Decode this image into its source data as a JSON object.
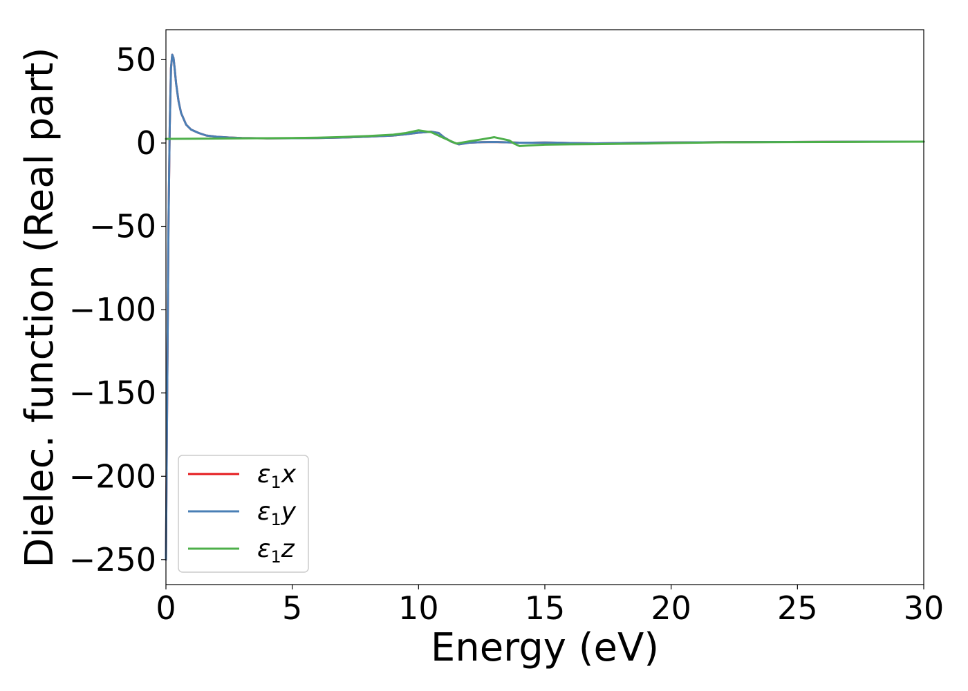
{
  "chart_data": {
    "type": "line",
    "xlabel": "Energy (eV)",
    "ylabel": "Dielec. function (Real part)",
    "xlim": [
      0,
      30
    ],
    "ylim": [
      -265,
      68
    ],
    "xticks": [
      0,
      5,
      10,
      15,
      20,
      25,
      30
    ],
    "yticks": [
      50,
      0,
      -50,
      -100,
      -150,
      -200,
      -250
    ],
    "xtick_labels": [
      "0",
      "5",
      "10",
      "15",
      "20",
      "25",
      "30"
    ],
    "ytick_labels": [
      "50",
      "0",
      "−50",
      "−100",
      "−150",
      "−200",
      "−250"
    ],
    "grid": false,
    "legend_position": "lower-left",
    "series": [
      {
        "name": "ε₁x",
        "legend_main": "ε",
        "legend_sub": "1",
        "legend_var": "x",
        "color": "#e41a1c",
        "x": [
          0.0,
          0.05,
          0.1,
          0.15,
          0.2,
          0.25,
          0.3,
          0.35,
          0.4,
          0.5,
          0.6,
          0.8,
          1.0,
          1.3,
          1.6,
          2.0,
          2.5,
          3.0,
          4.0,
          5.0,
          6.0,
          7.0,
          8.0,
          9.0,
          9.5,
          10.0,
          10.5,
          10.8,
          11.0,
          11.3,
          11.6,
          12.0,
          12.5,
          13.0,
          13.5,
          14.0,
          14.5,
          15.0,
          15.5,
          16.0,
          17.0,
          18.0,
          19.0,
          20.0,
          21.0,
          22.0,
          24.0,
          26.0,
          28.0,
          30.0
        ],
        "y": [
          -250,
          -150,
          -50,
          10,
          45,
          53,
          51,
          44,
          36,
          25,
          18,
          11,
          8,
          6,
          4.5,
          3.8,
          3.3,
          3.0,
          2.8,
          2.9,
          3.0,
          3.3,
          3.8,
          4.5,
          5.3,
          6.2,
          6.8,
          6.0,
          3.5,
          0.8,
          -0.8,
          0.2,
          0.5,
          0.6,
          0.4,
          0.2,
          0.2,
          0.3,
          0.2,
          0.0,
          -0.2,
          0.0,
          0.2,
          0.3,
          0.4,
          0.5,
          0.6,
          0.7,
          0.8,
          0.8
        ]
      },
      {
        "name": "ε₁y",
        "legend_main": "ε",
        "legend_sub": "1",
        "legend_var": "y",
        "color": "#4a7fb5",
        "x": [
          0.0,
          0.05,
          0.1,
          0.15,
          0.2,
          0.25,
          0.3,
          0.35,
          0.4,
          0.5,
          0.6,
          0.8,
          1.0,
          1.3,
          1.6,
          2.0,
          2.5,
          3.0,
          4.0,
          5.0,
          6.0,
          7.0,
          8.0,
          9.0,
          9.5,
          10.0,
          10.5,
          10.8,
          11.0,
          11.3,
          11.6,
          12.0,
          12.5,
          13.0,
          13.5,
          14.0,
          14.5,
          15.0,
          15.5,
          16.0,
          17.0,
          18.0,
          19.0,
          20.0,
          21.0,
          22.0,
          24.0,
          26.0,
          28.0,
          30.0
        ],
        "y": [
          -250,
          -150,
          -50,
          10,
          45,
          53,
          51,
          44,
          36,
          25,
          18,
          11,
          8,
          6,
          4.5,
          3.8,
          3.3,
          3.0,
          2.8,
          2.9,
          3.0,
          3.3,
          3.8,
          4.5,
          5.3,
          6.2,
          6.8,
          6.0,
          3.5,
          0.8,
          -0.8,
          0.2,
          0.5,
          0.6,
          0.4,
          0.2,
          0.2,
          0.3,
          0.2,
          0.0,
          -0.2,
          0.0,
          0.2,
          0.3,
          0.4,
          0.5,
          0.6,
          0.7,
          0.8,
          0.8
        ]
      },
      {
        "name": "ε₁z",
        "legend_main": "ε",
        "legend_sub": "1",
        "legend_var": "z",
        "color": "#4daf4a",
        "x": [
          0.0,
          1.0,
          2.0,
          3.0,
          4.0,
          5.0,
          6.0,
          7.0,
          8.0,
          9.0,
          9.5,
          10.0,
          10.5,
          11.0,
          11.5,
          12.0,
          12.5,
          13.0,
          13.3,
          13.6,
          13.8,
          14.0,
          14.3,
          15.0,
          16.0,
          17.0,
          18.0,
          19.0,
          20.0,
          21.0,
          22.0,
          24.0,
          26.0,
          28.0,
          30.0
        ],
        "y": [
          2.5,
          2.6,
          2.7,
          2.8,
          2.9,
          3.0,
          3.2,
          3.6,
          4.2,
          5.0,
          6.0,
          7.6,
          6.5,
          3.0,
          -0.3,
          1.0,
          2.2,
          3.5,
          2.5,
          1.5,
          -0.5,
          -1.8,
          -1.5,
          -1.0,
          -0.8,
          -0.7,
          -0.5,
          -0.3,
          0.0,
          0.2,
          0.4,
          0.5,
          0.6,
          0.7,
          0.8
        ]
      }
    ]
  }
}
